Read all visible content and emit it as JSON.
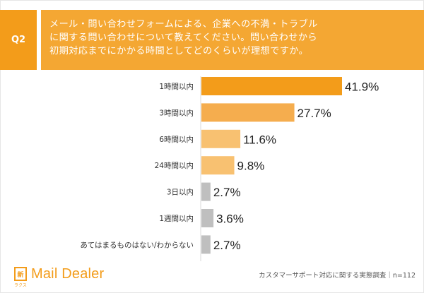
{
  "header": {
    "q_label": "Q2",
    "question_lines": [
      "メール・問い合わせフォームによる、企業への不満・トラブル",
      "に関する問い合わせについて教えてください。問い合わせから",
      "初期対応までにかかる時間としてどのくらいが理想ですか。"
    ]
  },
  "chart_data": {
    "type": "bar",
    "orientation": "horizontal",
    "categories": [
      "1時間以内",
      "3時間以内",
      "6時間以内",
      "24時間以内",
      "3日以内",
      "1週間以内",
      "あてはまるものはない/わからない"
    ],
    "values": [
      41.9,
      27.7,
      11.6,
      9.8,
      2.7,
      3.6,
      2.7
    ],
    "value_labels": [
      "41.9%",
      "27.7%",
      "11.6%",
      "9.8%",
      "2.7%",
      "3.6%",
      "2.7%"
    ],
    "colors": [
      "#f39c1a",
      "#f5ad4e",
      "#f8c171",
      "#f8c171",
      "#bfbfbf",
      "#bfbfbf",
      "#bfbfbf"
    ],
    "xlim": [
      0,
      100
    ],
    "grid": false,
    "legend": "none"
  },
  "footer": {
    "logo_mark": "新",
    "logo_sub": "ラクス",
    "logo_text": "Mail Dealer",
    "note": "カスタマーサポート対応に関する実態調査｜n=112"
  }
}
